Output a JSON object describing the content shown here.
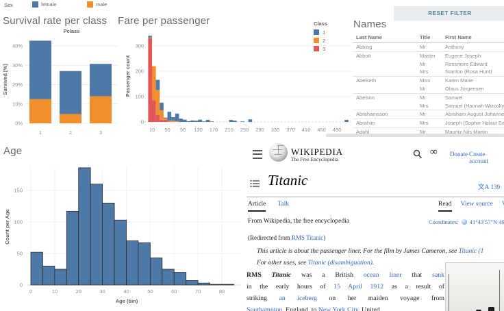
{
  "sex_legend": {
    "label": "Sex",
    "items": [
      {
        "label": "female",
        "color": "#4e79a7"
      },
      {
        "label": "male",
        "color": "#f28e2b"
      }
    ]
  },
  "reset_button": {
    "label": "RESET FILTER"
  },
  "chart_data": [
    {
      "id": "survival",
      "type": "bar",
      "title": "Survival rate per class",
      "x_axis_title": "Pclass",
      "ylabel": "Survived [%]",
      "categories": [
        "1",
        "2",
        "3"
      ],
      "yticks": [
        0,
        10,
        20,
        30,
        40
      ],
      "ytick_format": "percent",
      "ylim": [
        0,
        43
      ],
      "series": [
        {
          "name": "male",
          "color": "#f28e2b",
          "values": [
            12.5,
            4.8,
            14
          ]
        },
        {
          "name": "female",
          "color": "#4e79a7",
          "values": [
            30.2,
            22.2,
            16.7
          ]
        }
      ],
      "legend_position": "top"
    },
    {
      "id": "fare",
      "type": "histogram",
      "title": "Fare per passenger",
      "ylabel": "Passenger count",
      "bin_width": 10,
      "xlim": [
        -20,
        530
      ],
      "ylim": [
        0,
        360
      ],
      "xticks": [
        10,
        50,
        90,
        130,
        170,
        210,
        250,
        290,
        330,
        370,
        410,
        450,
        490
      ],
      "yticks": [
        0,
        100,
        200,
        300
      ],
      "bin_starts": [
        0,
        10,
        20,
        30,
        40,
        50,
        60,
        70,
        80,
        90,
        100,
        110,
        120,
        130,
        140,
        150,
        160,
        210,
        220,
        240,
        260,
        510
      ],
      "series": [
        {
          "name": "3",
          "color": "#e15759",
          "values": [
            330,
            86,
            27,
            8,
            8,
            1,
            0,
            0,
            0,
            0,
            0,
            0,
            0,
            0,
            0,
            0,
            0,
            0,
            0,
            0,
            0,
            0
          ]
        },
        {
          "name": "2",
          "color": "#f28e2b",
          "values": [
            3,
            134,
            99,
            38,
            6,
            4,
            5,
            3,
            0,
            0,
            0,
            0,
            0,
            0,
            0,
            0,
            0,
            0,
            0,
            0,
            0,
            0
          ]
        },
        {
          "name": "1",
          "color": "#4e79a7",
          "values": [
            7,
            0,
            40,
            30,
            3,
            35,
            14,
            30,
            13,
            9,
            3,
            6,
            5,
            9,
            2,
            8,
            2,
            8,
            5,
            2,
            10,
            8
          ]
        }
      ],
      "legend": {
        "title": "Class",
        "items": [
          {
            "label": "1",
            "color": "#4e79a7"
          },
          {
            "label": "2",
            "color": "#f28e2b"
          },
          {
            "label": "3",
            "color": "#e15759"
          }
        ]
      }
    },
    {
      "id": "age",
      "type": "histogram",
      "title": "Age",
      "xlabel": "Age (bin)",
      "ylabel": "Count per Age",
      "color": "#4e79a7",
      "bin_start": 0,
      "bin_width": 5,
      "values": [
        52,
        30,
        25,
        117,
        186,
        160,
        130,
        103,
        70,
        67,
        43,
        25,
        20,
        7,
        3,
        1,
        1
      ],
      "xticks": [
        0,
        10,
        20,
        30,
        40,
        50,
        60,
        70,
        80
      ],
      "yticks": [
        0,
        50,
        100,
        150
      ],
      "ylim": [
        0,
        190
      ]
    }
  ],
  "names_table": {
    "title": "Names",
    "columns": [
      "Last Name",
      "Title",
      "First Name"
    ],
    "rows": [
      {
        "last": "Abbing",
        "title": "Mr",
        "first": "Anthony",
        "group": true
      },
      {
        "last": "Abbott",
        "title": "Master",
        "first": "Eugene Joseph",
        "group": true
      },
      {
        "last": "",
        "title": "Mr",
        "first": "Rossmore Edward",
        "group": false
      },
      {
        "last": "",
        "title": "Mrs",
        "first": "Stanton (Rosa Hunt)",
        "group": false
      },
      {
        "last": "Abelseth",
        "title": "Miss",
        "first": "Karen Marie",
        "group": true
      },
      {
        "last": "",
        "title": "Mr",
        "first": "Olaus Jorgensen",
        "group": false
      },
      {
        "last": "Abelson",
        "title": "Mr",
        "first": "Samuel",
        "group": true
      },
      {
        "last": "",
        "title": "Mrs",
        "first": "Samuel (Hannah Wizosky)",
        "group": false
      },
      {
        "last": "Abrahamsson",
        "title": "Mr",
        "first": "Abraham August Johannes",
        "group": true
      },
      {
        "last": "Abrahim",
        "title": "Mrs",
        "first": "Joseph (Sophie Halaut Easu)",
        "group": true
      },
      {
        "last": "Adahl",
        "title": "Mr",
        "first": "Mauritz Nils Martin",
        "group": true
      }
    ]
  },
  "wikipedia": {
    "wordmark": "WIKIPEDIA",
    "tagline": "The Free Encyclopedia",
    "icons": {
      "menu": "hamburger",
      "logo": "puzzle-globe",
      "search": "magnifier",
      "appearance": "∞",
      "contents": "list",
      "language": "文A",
      "coordinates_globe": "globe"
    },
    "links": {
      "donate": "Donate",
      "create_account": "Create account"
    },
    "title": "Titanic",
    "lang_icon": "文A",
    "lang_count": "139",
    "tabs_left": [
      {
        "label": "Article",
        "active": true
      },
      {
        "label": "Talk",
        "active": false
      }
    ],
    "tabs_right": [
      {
        "label": "Read",
        "active": true
      },
      {
        "label": "View source",
        "active": false
      },
      {
        "label": "View hist",
        "active": false
      }
    ],
    "subtitle": "From Wikipedia, the free encyclopedia",
    "coordinates": {
      "label": "Coordinates:",
      "value": "41°43′57″N 49°56"
    },
    "redirect": [
      {
        "t": "(Redirected from "
      },
      {
        "t": "RMS Titanic",
        "link": true
      },
      {
        "t": ")"
      }
    ],
    "hatnote1": [
      {
        "t": "This article is about the passenger liner. For the film by James Cameron, see ",
        "i": true
      },
      {
        "t": "Titanic (1",
        "i": true,
        "link": true
      }
    ],
    "hatnote2": [
      {
        "t": "For other uses, see ",
        "i": true
      },
      {
        "t": "Titanic (disambiguation)",
        "i": true,
        "link": true
      },
      {
        "t": ".",
        "i": true
      }
    ],
    "body_lines": [
      [
        {
          "t": "RMS ",
          "b": true
        },
        {
          "t": "Titanic",
          "b": true,
          "i": true
        },
        {
          "t": " was a British "
        },
        {
          "t": "ocean liner",
          "link": true
        },
        {
          "t": " that "
        },
        {
          "t": "sank",
          "link": true
        }
      ],
      [
        {
          "t": "in the early hours of "
        },
        {
          "t": "15 April 1912",
          "link": true
        },
        {
          "t": " as a result of"
        }
      ],
      [
        {
          "t": "striking "
        },
        {
          "t": "an iceberg",
          "link": true
        },
        {
          "t": " on her maiden voyage from"
        }
      ],
      [
        {
          "t": "Southampton",
          "link": true
        },
        {
          "t": ", England, to "
        },
        {
          "t": "New York City",
          "link": true
        },
        {
          "t": ", United"
        }
      ]
    ]
  }
}
